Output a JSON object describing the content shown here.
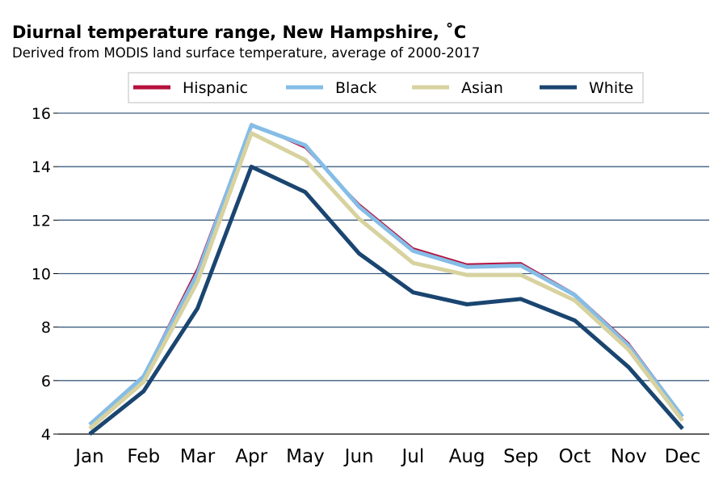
{
  "chart_data": {
    "type": "line",
    "title": "Diurnal temperature range, New Hampshire, ˚C",
    "subtitle": "Derived from MODIS land surface temperature, average of 2000-2017",
    "xlabel": "",
    "ylabel": "",
    "categories": [
      "Jan",
      "Feb",
      "Mar",
      "Apr",
      "May",
      "Jun",
      "Jul",
      "Aug",
      "Sep",
      "Oct",
      "Nov",
      "Dec"
    ],
    "ylim": [
      4,
      16
    ],
    "yticks": [
      4,
      6,
      8,
      10,
      12,
      14,
      16
    ],
    "grid": "horizontal",
    "legend_position": "top",
    "series": [
      {
        "name": "Hispanic",
        "color": "#b5103c",
        "values": [
          4.4,
          6.2,
          10.2,
          15.6,
          14.7,
          12.6,
          10.95,
          10.35,
          10.4,
          9.25,
          7.4,
          4.7
        ]
      },
      {
        "name": "Black",
        "color": "#85bde6",
        "values": [
          4.35,
          6.15,
          10.0,
          15.55,
          14.8,
          12.5,
          10.85,
          10.25,
          10.3,
          9.2,
          7.3,
          4.65
        ]
      },
      {
        "name": "Asian",
        "color": "#d7d29f",
        "values": [
          4.2,
          5.95,
          9.7,
          15.25,
          14.25,
          12.05,
          10.4,
          9.95,
          9.95,
          9.0,
          7.15,
          4.5
        ]
      },
      {
        "name": "White",
        "color": "#1a4570",
        "values": [
          4.0,
          5.6,
          8.7,
          14.0,
          13.05,
          10.75,
          9.3,
          8.85,
          9.05,
          8.25,
          6.5,
          4.2
        ]
      }
    ]
  }
}
